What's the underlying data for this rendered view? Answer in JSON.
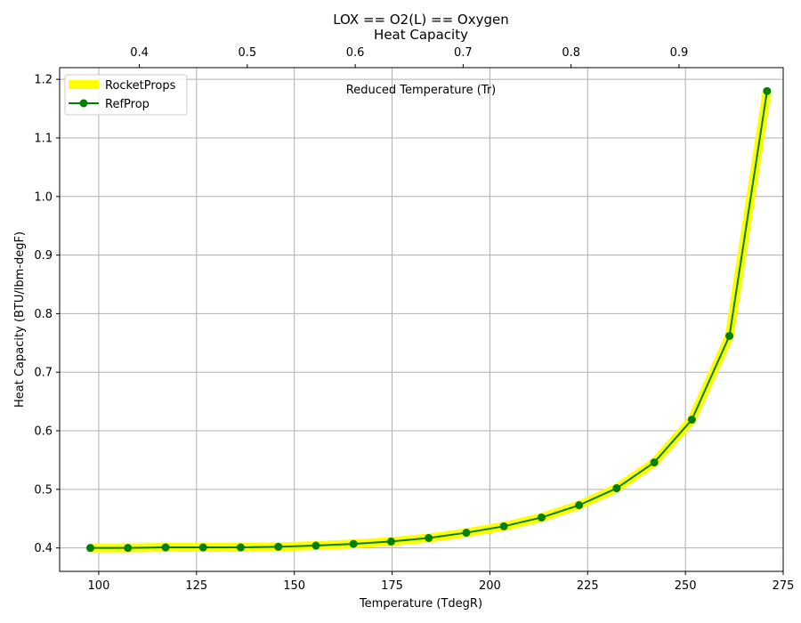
{
  "chart_data": {
    "type": "line",
    "title": "LOX == O2(L) == Oxygen",
    "subtitle": "Heat Capacity",
    "xlabel": "Temperature (TdegR)",
    "ylabel": "Heat Capacity (BTU/lbm-degF)",
    "secondary_xlabel": "Reduced Temperature (Tr)",
    "xlim": [
      90,
      275
    ],
    "ylim": [
      0.36,
      1.22
    ],
    "x_ticks": [
      100,
      125,
      150,
      175,
      200,
      225,
      250,
      275
    ],
    "y_ticks": [
      0.4,
      0.5,
      0.6,
      0.7,
      0.8,
      0.9,
      1.0,
      1.1,
      1.2
    ],
    "secondary_x_ticks": [
      0.4,
      0.5,
      0.6,
      0.7,
      0.8,
      0.9
    ],
    "secondary_x_factor": 0.00362376,
    "grid": true,
    "legend_position": "top-left",
    "x": [
      97.85,
      107.46,
      117.08,
      126.69,
      136.3,
      145.91,
      155.52,
      165.13,
      174.75,
      184.36,
      193.97,
      203.58,
      213.2,
      222.81,
      232.42,
      242.03,
      251.64,
      261.25,
      270.87
    ],
    "series": [
      {
        "name": "RocketProps",
        "color": "#ffff00",
        "style": "thick-line",
        "values": [
          0.4,
          0.4,
          0.401,
          0.401,
          0.401,
          0.402,
          0.404,
          0.407,
          0.411,
          0.417,
          0.426,
          0.437,
          0.452,
          0.473,
          0.502,
          0.546,
          0.619,
          0.762,
          1.18
        ]
      },
      {
        "name": "RefProp",
        "color": "#008000",
        "style": "line-with-markers",
        "values": [
          0.4,
          0.4,
          0.401,
          0.401,
          0.401,
          0.402,
          0.404,
          0.407,
          0.411,
          0.417,
          0.426,
          0.437,
          0.452,
          0.473,
          0.502,
          0.546,
          0.619,
          0.762,
          1.18
        ]
      }
    ]
  }
}
